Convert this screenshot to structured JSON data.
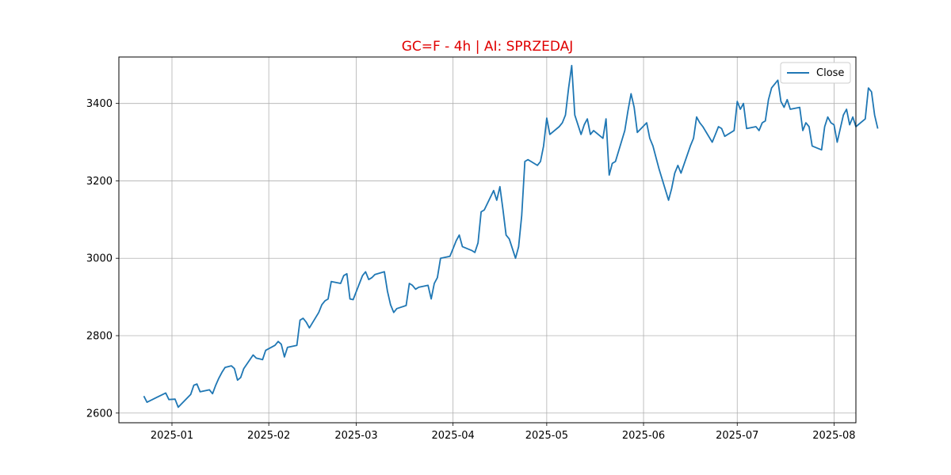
{
  "chart_data": {
    "type": "line",
    "title": "GC=F - 4h | AI: SPRZEDAJ",
    "title_color": "#e00000",
    "xlabel": "",
    "ylabel": "",
    "x_tick_labels": [
      "2025-01",
      "2025-02",
      "2025-03",
      "2025-04",
      "2025-05",
      "2025-06",
      "2025-07",
      "2025-08"
    ],
    "x_tick_dates": [
      "2025-01-01",
      "2025-02-01",
      "2025-03-01",
      "2025-04-01",
      "2025-05-01",
      "2025-06-01",
      "2025-07-01",
      "2025-08-01"
    ],
    "y_ticks": [
      2600,
      2800,
      3000,
      3200,
      3400
    ],
    "xlim": [
      "2024-12-15",
      "2025-08-08"
    ],
    "ylim": [
      2575,
      3520
    ],
    "grid": true,
    "legend": {
      "position": "top-right"
    },
    "series": [
      {
        "name": "Close",
        "color": "#1f77b4",
        "points": [
          [
            "2024-12-23",
            2644
          ],
          [
            "2024-12-24",
            2628
          ],
          [
            "2024-12-26",
            2636
          ],
          [
            "2024-12-27",
            2640
          ],
          [
            "2024-12-30",
            2652
          ],
          [
            "2024-12-31",
            2635
          ],
          [
            "2025-01-02",
            2636
          ],
          [
            "2025-01-03",
            2615
          ],
          [
            "2025-01-06",
            2640
          ],
          [
            "2025-01-07",
            2648
          ],
          [
            "2025-01-08",
            2672
          ],
          [
            "2025-01-09",
            2675
          ],
          [
            "2025-01-10",
            2655
          ],
          [
            "2025-01-13",
            2660
          ],
          [
            "2025-01-14",
            2650
          ],
          [
            "2025-01-15",
            2672
          ],
          [
            "2025-01-16",
            2690
          ],
          [
            "2025-01-17",
            2705
          ],
          [
            "2025-01-18",
            2718
          ],
          [
            "2025-01-20",
            2722
          ],
          [
            "2025-01-21",
            2715
          ],
          [
            "2025-01-22",
            2685
          ],
          [
            "2025-01-23",
            2692
          ],
          [
            "2025-01-24",
            2715
          ],
          [
            "2025-01-27",
            2750
          ],
          [
            "2025-01-28",
            2742
          ],
          [
            "2025-01-29",
            2740
          ],
          [
            "2025-01-30",
            2738
          ],
          [
            "2025-01-31",
            2762
          ],
          [
            "2025-02-03",
            2775
          ],
          [
            "2025-02-04",
            2785
          ],
          [
            "2025-02-05",
            2778
          ],
          [
            "2025-02-06",
            2745
          ],
          [
            "2025-02-07",
            2770
          ],
          [
            "2025-02-10",
            2775
          ],
          [
            "2025-02-11",
            2840
          ],
          [
            "2025-02-12",
            2845
          ],
          [
            "2025-02-13",
            2835
          ],
          [
            "2025-02-14",
            2820
          ],
          [
            "2025-02-17",
            2860
          ],
          [
            "2025-02-18",
            2880
          ],
          [
            "2025-02-19",
            2890
          ],
          [
            "2025-02-20",
            2895
          ],
          [
            "2025-02-21",
            2940
          ],
          [
            "2025-02-24",
            2935
          ],
          [
            "2025-02-25",
            2955
          ],
          [
            "2025-02-26",
            2960
          ],
          [
            "2025-02-27",
            2895
          ],
          [
            "2025-02-28",
            2893
          ],
          [
            "2025-03-03",
            2955
          ],
          [
            "2025-03-04",
            2965
          ],
          [
            "2025-03-05",
            2945
          ],
          [
            "2025-03-06",
            2950
          ],
          [
            "2025-03-07",
            2958
          ],
          [
            "2025-03-10",
            2965
          ],
          [
            "2025-03-11",
            2915
          ],
          [
            "2025-03-12",
            2880
          ],
          [
            "2025-03-13",
            2860
          ],
          [
            "2025-03-14",
            2870
          ],
          [
            "2025-03-17",
            2878
          ],
          [
            "2025-03-18",
            2935
          ],
          [
            "2025-03-19",
            2930
          ],
          [
            "2025-03-20",
            2920
          ],
          [
            "2025-03-21",
            2925
          ],
          [
            "2025-03-24",
            2930
          ],
          [
            "2025-03-25",
            2895
          ],
          [
            "2025-03-26",
            2935
          ],
          [
            "2025-03-27",
            2950
          ],
          [
            "2025-03-28",
            3000
          ],
          [
            "2025-03-31",
            3005
          ],
          [
            "2025-04-01",
            3025
          ],
          [
            "2025-04-02",
            3045
          ],
          [
            "2025-04-03",
            3060
          ],
          [
            "2025-04-04",
            3030
          ],
          [
            "2025-04-07",
            3020
          ],
          [
            "2025-04-08",
            3015
          ],
          [
            "2025-04-09",
            3040
          ],
          [
            "2025-04-10",
            3120
          ],
          [
            "2025-04-11",
            3125
          ],
          [
            "2025-04-14",
            3175
          ],
          [
            "2025-04-15",
            3150
          ],
          [
            "2025-04-16",
            3185
          ],
          [
            "2025-04-17",
            3125
          ],
          [
            "2025-04-18",
            3060
          ],
          [
            "2025-04-19",
            3050
          ],
          [
            "2025-04-21",
            3000
          ],
          [
            "2025-04-22",
            3030
          ],
          [
            "2025-04-23",
            3110
          ],
          [
            "2025-04-24",
            3250
          ],
          [
            "2025-04-25",
            3255
          ],
          [
            "2025-04-28",
            3240
          ],
          [
            "2025-04-29",
            3250
          ],
          [
            "2025-04-30",
            3290
          ],
          [
            "2025-05-01",
            3362
          ],
          [
            "2025-05-02",
            3320
          ],
          [
            "2025-05-05",
            3340
          ],
          [
            "2025-05-06",
            3350
          ],
          [
            "2025-05-07",
            3370
          ],
          [
            "2025-05-08",
            3440
          ],
          [
            "2025-05-09",
            3498
          ],
          [
            "2025-05-10",
            3370
          ],
          [
            "2025-05-12",
            3320
          ],
          [
            "2025-05-13",
            3345
          ],
          [
            "2025-05-14",
            3360
          ],
          [
            "2025-05-15",
            3320
          ],
          [
            "2025-05-16",
            3330
          ],
          [
            "2025-05-19",
            3310
          ],
          [
            "2025-05-20",
            3360
          ],
          [
            "2025-05-21",
            3215
          ],
          [
            "2025-05-22",
            3245
          ],
          [
            "2025-05-23",
            3250
          ],
          [
            "2025-05-26",
            3330
          ],
          [
            "2025-05-27",
            3380
          ],
          [
            "2025-05-28",
            3425
          ],
          [
            "2025-05-29",
            3390
          ],
          [
            "2025-05-30",
            3325
          ],
          [
            "2025-06-02",
            3350
          ],
          [
            "2025-06-03",
            3310
          ],
          [
            "2025-06-04",
            3290
          ],
          [
            "2025-06-05",
            3260
          ],
          [
            "2025-06-06",
            3230
          ],
          [
            "2025-06-09",
            3150
          ],
          [
            "2025-06-10",
            3180
          ],
          [
            "2025-06-11",
            3220
          ],
          [
            "2025-06-12",
            3240
          ],
          [
            "2025-06-13",
            3220
          ],
          [
            "2025-06-16",
            3290
          ],
          [
            "2025-06-17",
            3310
          ],
          [
            "2025-06-18",
            3365
          ],
          [
            "2025-06-19",
            3350
          ],
          [
            "2025-06-20",
            3340
          ],
          [
            "2025-06-23",
            3300
          ],
          [
            "2025-06-24",
            3320
          ],
          [
            "2025-06-25",
            3340
          ],
          [
            "2025-06-26",
            3335
          ],
          [
            "2025-06-27",
            3315
          ],
          [
            "2025-06-30",
            3330
          ],
          [
            "2025-07-01",
            3405
          ],
          [
            "2025-07-02",
            3385
          ],
          [
            "2025-07-03",
            3400
          ],
          [
            "2025-07-04",
            3335
          ],
          [
            "2025-07-07",
            3340
          ],
          [
            "2025-07-08",
            3330
          ],
          [
            "2025-07-09",
            3350
          ],
          [
            "2025-07-10",
            3355
          ],
          [
            "2025-07-11",
            3410
          ],
          [
            "2025-07-12",
            3440
          ],
          [
            "2025-07-14",
            3460
          ],
          [
            "2025-07-15",
            3405
          ],
          [
            "2025-07-16",
            3390
          ],
          [
            "2025-07-17",
            3410
          ],
          [
            "2025-07-18",
            3385
          ],
          [
            "2025-07-21",
            3390
          ],
          [
            "2025-07-22",
            3330
          ],
          [
            "2025-07-23",
            3350
          ],
          [
            "2025-07-24",
            3340
          ],
          [
            "2025-07-25",
            3290
          ],
          [
            "2025-07-28",
            3280
          ],
          [
            "2025-07-29",
            3340
          ],
          [
            "2025-07-30",
            3365
          ],
          [
            "2025-07-31",
            3350
          ],
          [
            "2025-08-01",
            3345
          ],
          [
            "2025-08-02",
            3300
          ],
          [
            "2025-08-04",
            3370
          ],
          [
            "2025-08-05",
            3385
          ],
          [
            "2025-08-06",
            3345
          ],
          [
            "2025-08-07",
            3365
          ],
          [
            "2025-08-08",
            3340
          ],
          [
            "2025-08-11",
            3360
          ],
          [
            "2025-08-12",
            3440
          ],
          [
            "2025-08-13",
            3430
          ],
          [
            "2025-08-14",
            3370
          ],
          [
            "2025-08-15",
            3335
          ]
        ]
      }
    ]
  }
}
